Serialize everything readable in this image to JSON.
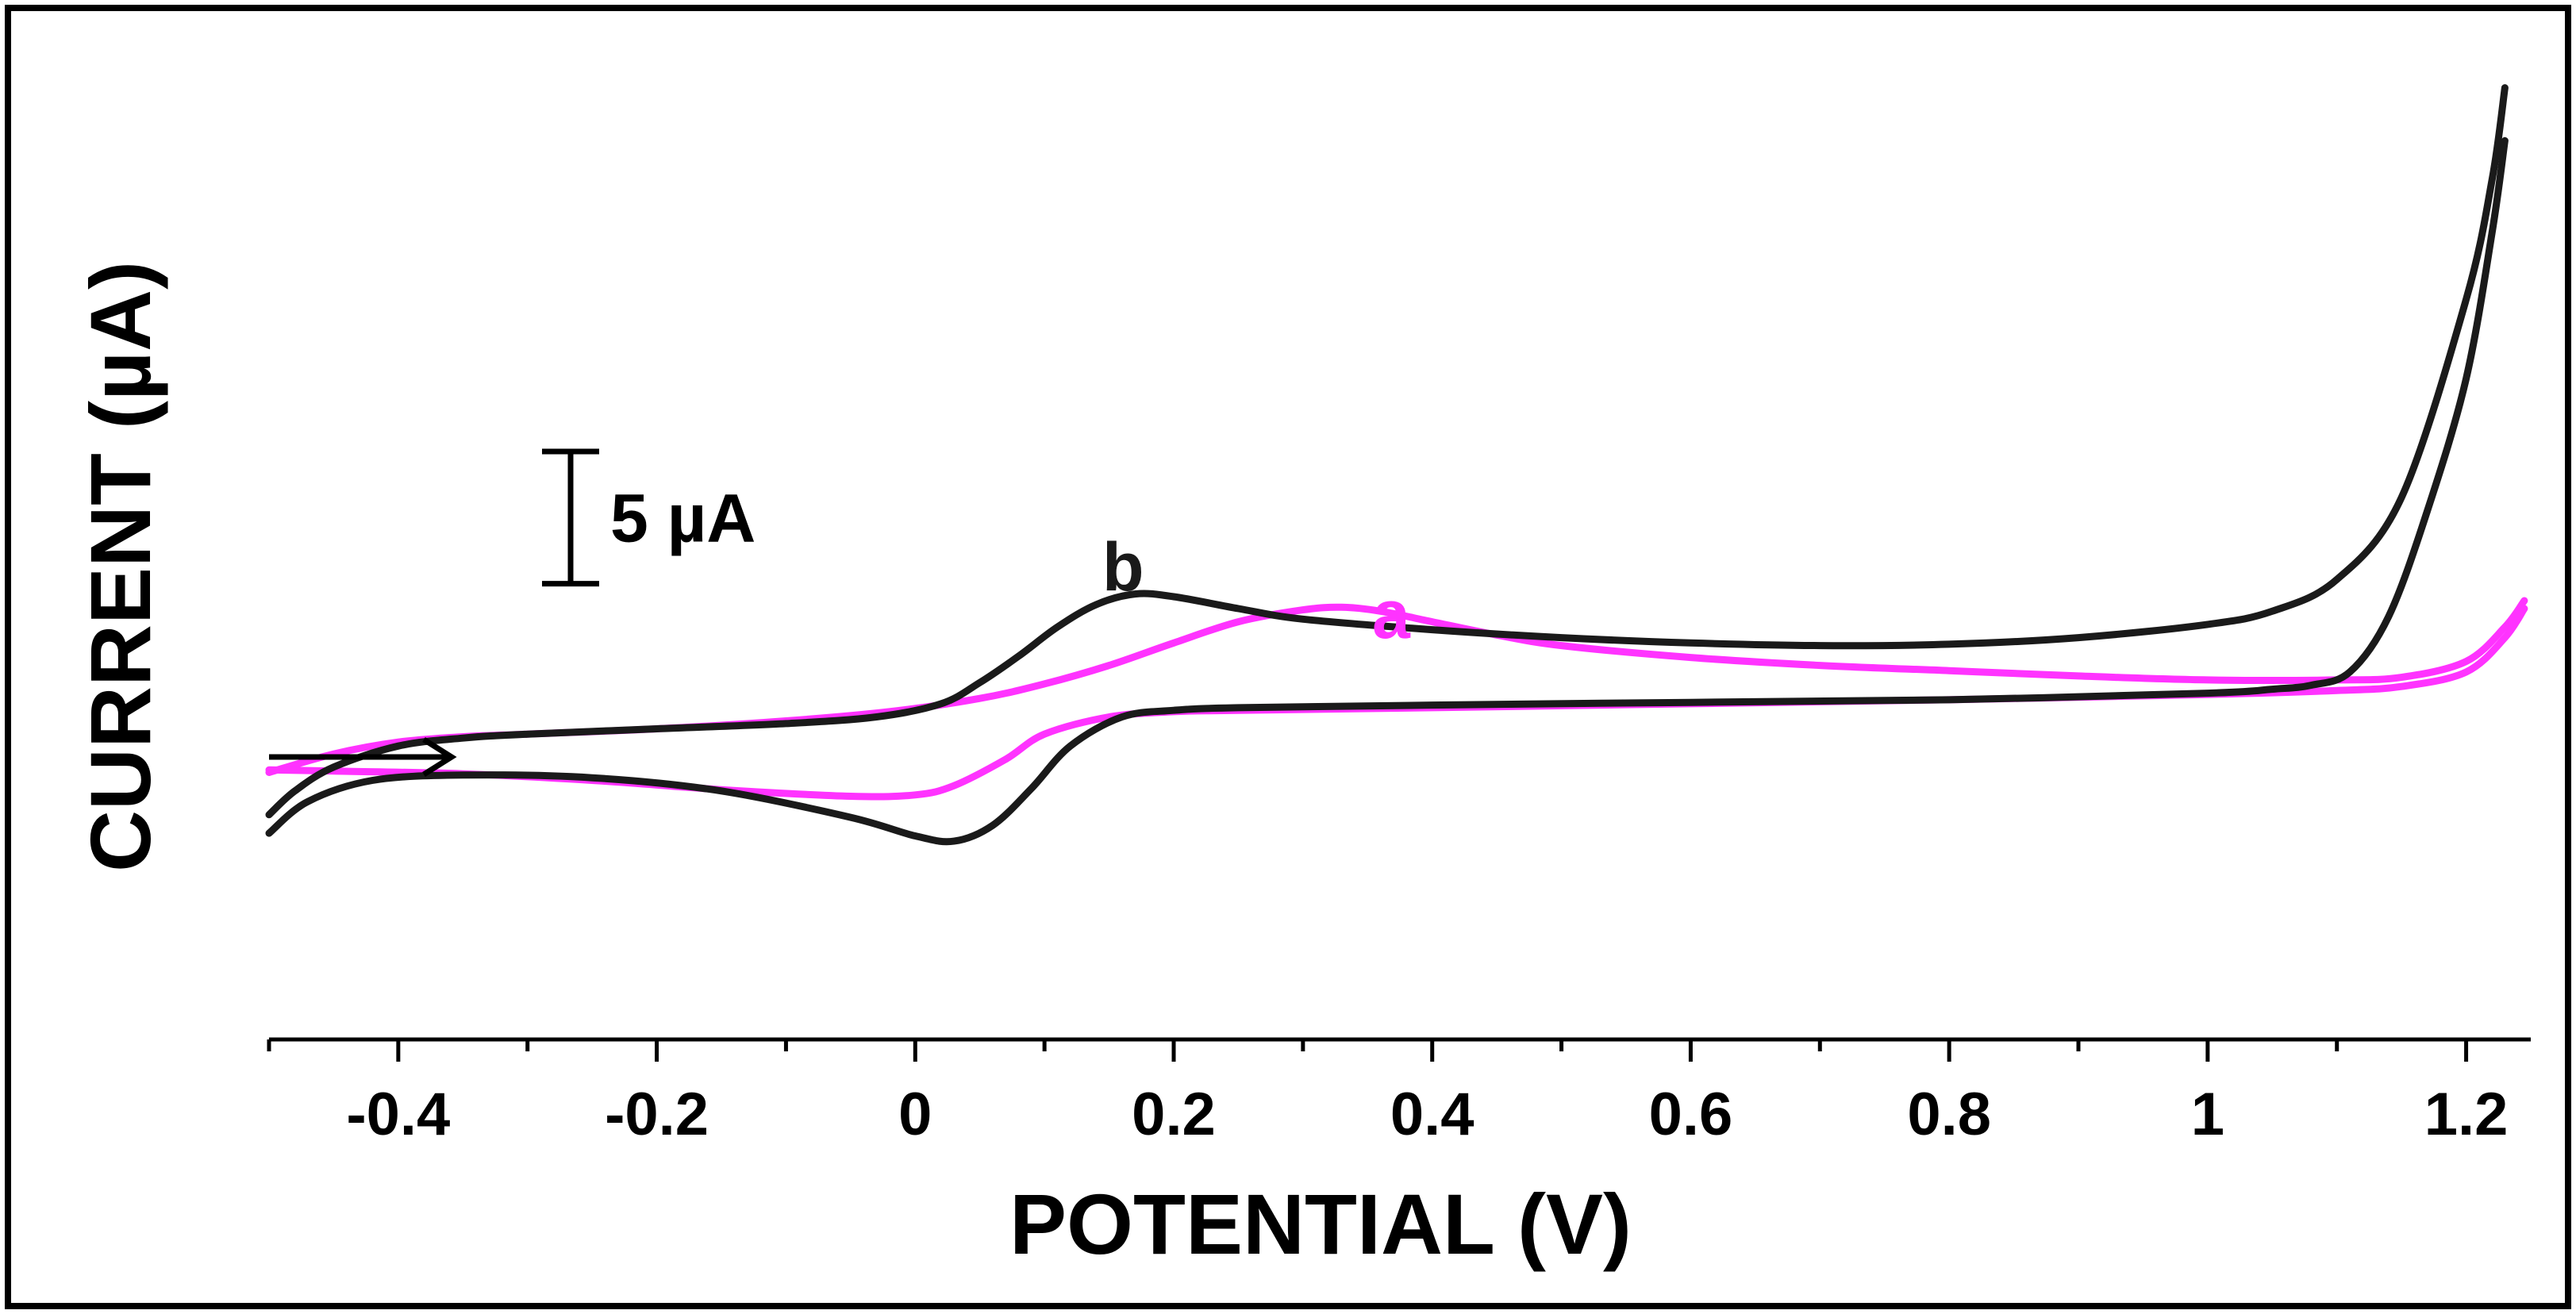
{
  "chart_data": {
    "type": "line",
    "title": "",
    "xlabel": "POTENTIAL (V)",
    "ylabel": "CURRENT (µA)",
    "xlim": [
      -0.5,
      1.25
    ],
    "ylim": [
      -10,
      28
    ],
    "x_ticks": [
      -0.4,
      -0.2,
      0,
      0.2,
      0.4,
      0.6,
      0.8,
      1,
      1.2
    ],
    "x_tick_labels": [
      "-0.4",
      "-0.2",
      "0",
      "0.2",
      "0.4",
      "0.6",
      "0.8",
      "1",
      "1.2"
    ],
    "y_axis_shown": false,
    "grid": false,
    "scale_bar": {
      "label": "5 µA",
      "value": 5
    },
    "scan_direction_arrow": "right",
    "series": [
      {
        "name": "a",
        "color": "#ff33ff",
        "forward": [
          [
            -0.5,
            0.1
          ],
          [
            -0.45,
            0.8
          ],
          [
            -0.4,
            1.25
          ],
          [
            -0.35,
            1.45
          ],
          [
            -0.3,
            1.55
          ],
          [
            -0.2,
            1.75
          ],
          [
            -0.1,
            2.05
          ],
          [
            -0.02,
            2.4
          ],
          [
            0.05,
            2.9
          ],
          [
            0.1,
            3.45
          ],
          [
            0.15,
            4.15
          ],
          [
            0.2,
            5
          ],
          [
            0.25,
            5.8
          ],
          [
            0.3,
            6.25
          ],
          [
            0.33,
            6.35
          ],
          [
            0.36,
            6.2
          ],
          [
            0.4,
            5.8
          ],
          [
            0.45,
            5.3
          ],
          [
            0.5,
            4.9
          ],
          [
            0.6,
            4.45
          ],
          [
            0.7,
            4.15
          ],
          [
            0.8,
            3.95
          ],
          [
            0.9,
            3.75
          ],
          [
            1.0,
            3.6
          ],
          [
            1.1,
            3.6
          ],
          [
            1.15,
            3.7
          ],
          [
            1.2,
            4.3
          ],
          [
            1.23,
            5.6
          ],
          [
            1.245,
            6.6
          ]
        ],
        "reverse": [
          [
            1.245,
            6.3
          ],
          [
            1.23,
            5.2
          ],
          [
            1.2,
            3.9
          ],
          [
            1.15,
            3.35
          ],
          [
            1.1,
            3.2
          ],
          [
            1.0,
            3.05
          ],
          [
            0.8,
            2.85
          ],
          [
            0.6,
            2.7
          ],
          [
            0.4,
            2.55
          ],
          [
            0.25,
            2.45
          ],
          [
            0.2,
            2.4
          ],
          [
            0.15,
            2.2
          ],
          [
            0.1,
            1.55
          ],
          [
            0.07,
            0.6
          ],
          [
            0.03,
            -0.4
          ],
          [
            0.0,
            -0.75
          ],
          [
            -0.05,
            -0.8
          ],
          [
            -0.15,
            -0.55
          ],
          [
            -0.25,
            -0.2
          ],
          [
            -0.35,
            0.05
          ],
          [
            -0.45,
            0.15
          ],
          [
            -0.5,
            0.2
          ]
        ]
      },
      {
        "name": "b",
        "color": "#1a1a1a",
        "forward": [
          [
            -0.5,
            -1.5
          ],
          [
            -0.48,
            -0.6
          ],
          [
            -0.45,
            0.3
          ],
          [
            -0.4,
            1.1
          ],
          [
            -0.35,
            1.4
          ],
          [
            -0.3,
            1.55
          ],
          [
            -0.2,
            1.75
          ],
          [
            -0.1,
            1.95
          ],
          [
            -0.03,
            2.2
          ],
          [
            0.02,
            2.7
          ],
          [
            0.05,
            3.5
          ],
          [
            0.08,
            4.5
          ],
          [
            0.11,
            5.6
          ],
          [
            0.14,
            6.45
          ],
          [
            0.17,
            6.85
          ],
          [
            0.2,
            6.75
          ],
          [
            0.25,
            6.3
          ],
          [
            0.3,
            5.9
          ],
          [
            0.4,
            5.5
          ],
          [
            0.5,
            5.2
          ],
          [
            0.6,
            5.0
          ],
          [
            0.7,
            4.9
          ],
          [
            0.8,
            4.95
          ],
          [
            0.9,
            5.2
          ],
          [
            1.0,
            5.7
          ],
          [
            1.05,
            6.2
          ],
          [
            1.1,
            7.4
          ],
          [
            1.15,
            10.5
          ],
          [
            1.2,
            18
          ],
          [
            1.22,
            22.5
          ],
          [
            1.23,
            26
          ]
        ],
        "reverse": [
          [
            1.23,
            24
          ],
          [
            1.22,
            20.5
          ],
          [
            1.2,
            15
          ],
          [
            1.17,
            10
          ],
          [
            1.14,
            6
          ],
          [
            1.11,
            3.9
          ],
          [
            1.08,
            3.4
          ],
          [
            1.05,
            3.25
          ],
          [
            1.0,
            3.1
          ],
          [
            0.8,
            2.85
          ],
          [
            0.6,
            2.75
          ],
          [
            0.4,
            2.65
          ],
          [
            0.25,
            2.55
          ],
          [
            0.2,
            2.45
          ],
          [
            0.16,
            2.2
          ],
          [
            0.12,
            1.1
          ],
          [
            0.09,
            -0.5
          ],
          [
            0.06,
            -1.9
          ],
          [
            0.03,
            -2.5
          ],
          [
            0.0,
            -2.3
          ],
          [
            -0.05,
            -1.6
          ],
          [
            -0.15,
            -0.6
          ],
          [
            -0.25,
            -0.1
          ],
          [
            -0.35,
            0.0
          ],
          [
            -0.42,
            -0.2
          ],
          [
            -0.47,
            -1.0
          ],
          [
            -0.5,
            -2.2
          ]
        ]
      }
    ],
    "annotations": [
      {
        "text": "a",
        "color": "#ff33ff"
      },
      {
        "text": "b",
        "color": "#1a1a1a"
      }
    ]
  }
}
